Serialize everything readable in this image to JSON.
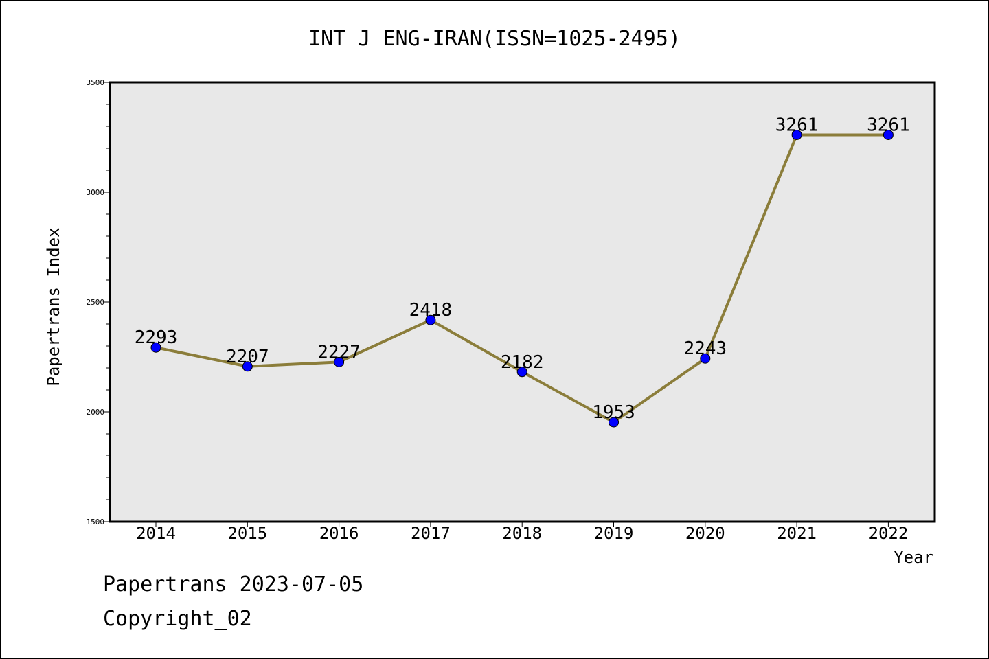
{
  "chart_data": {
    "type": "line",
    "title": "INT J ENG-IRAN(ISSN=1025-2495)",
    "xlabel": "Year",
    "ylabel": "Papertrans Index",
    "x": [
      "2014",
      "2015",
      "2016",
      "2017",
      "2018",
      "2019",
      "2020",
      "2021",
      "2022"
    ],
    "values": [
      2293,
      2207,
      2227,
      2418,
      2182,
      1953,
      2243,
      3261,
      3261
    ],
    "data_labels": [
      "2293",
      "2207",
      "2227",
      "2418",
      "2182",
      "1953",
      "2243",
      "3261",
      "3261"
    ],
    "ylim": [
      1500,
      3500
    ],
    "y_ticks": [
      "1500",
      "2000",
      "2500",
      "3000",
      "3500"
    ],
    "grid": false,
    "line_color": "#8B7D3A",
    "marker_color": "#0000FF",
    "plot_background": "#E8E8E8"
  },
  "footer": {
    "line1": "Papertrans 2023-07-05",
    "line2": "Copyright_02"
  }
}
